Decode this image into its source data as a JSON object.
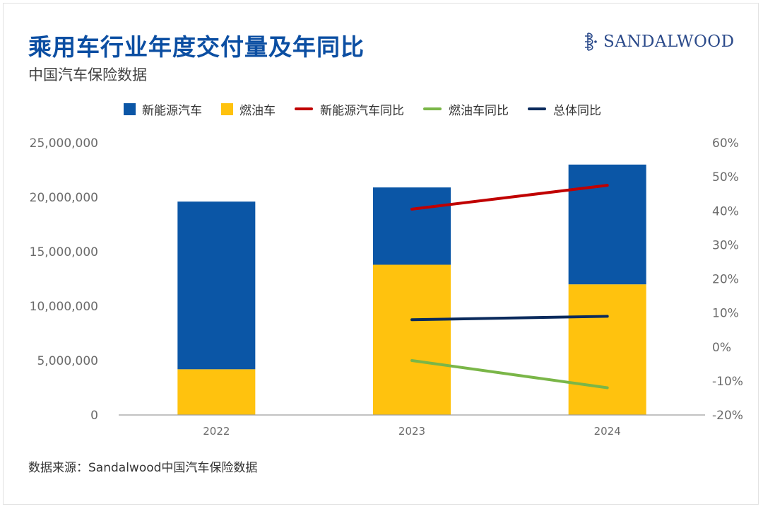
{
  "header": {
    "title": "乘用车行业年度交付量及年同比",
    "subtitle": "中国汽车保险数据"
  },
  "logo": {
    "text": "SANDALWOOD"
  },
  "footer": {
    "source": "数据来源：Sandalwood中国汽车保险数据"
  },
  "colors": {
    "nev": "#0b56a6",
    "ice": "#ffc20e",
    "nev_yoy": "#c00000",
    "ice_yoy": "#7ab648",
    "total_yoy": "#0a2a5c",
    "axis_text": "#6b6b6b",
    "brand": "#2b4a8a"
  },
  "chart_data": {
    "type": "bar",
    "stacked": true,
    "categories": [
      "2022",
      "2023",
      "2024"
    ],
    "series": [
      {
        "name": "燃油车",
        "kind": "bar",
        "axis": "left",
        "values": [
          4200000,
          13800000,
          12000000
        ]
      },
      {
        "name": "新能源汽车",
        "kind": "bar",
        "axis": "left",
        "values": [
          15400000,
          7100000,
          11000000
        ]
      }
    ],
    "line_series": [
      {
        "name": "新能源汽车同比",
        "kind": "line",
        "axis": "right",
        "values": [
          null,
          40.5,
          47.5
        ]
      },
      {
        "name": "燃油车同比",
        "kind": "line",
        "axis": "right",
        "values": [
          null,
          -4.0,
          -12.0
        ]
      },
      {
        "name": "总体同比",
        "kind": "line",
        "axis": "right",
        "values": [
          null,
          8.0,
          9.0
        ]
      }
    ],
    "legend": [
      {
        "label": "新能源汽车",
        "shape": "box",
        "color": "#0b56a6"
      },
      {
        "label": "燃油车",
        "shape": "box",
        "color": "#ffc20e"
      },
      {
        "label": "新能源汽车同比",
        "shape": "line",
        "color": "#c00000"
      },
      {
        "label": "燃油车同比",
        "shape": "line",
        "color": "#7ab648"
      },
      {
        "label": "总体同比",
        "shape": "line",
        "color": "#0a2a5c"
      }
    ],
    "legend_position": "top",
    "y_left": {
      "ylim": [
        0,
        25000000
      ],
      "ticks": [
        0,
        5000000,
        10000000,
        15000000,
        20000000,
        25000000
      ],
      "tick_labels": [
        "0",
        "5,000,000",
        "10,000,000",
        "15,000,000",
        "20,000,000",
        "25,000,000"
      ]
    },
    "y_right": {
      "ylim": [
        -20,
        60
      ],
      "ticks": [
        -20,
        -10,
        0,
        10,
        20,
        30,
        40,
        50,
        60
      ],
      "tick_labels": [
        "-20%",
        "-10%",
        "0%",
        "10%",
        "20%",
        "30%",
        "40%",
        "50%",
        "60%"
      ]
    },
    "grid": false
  }
}
